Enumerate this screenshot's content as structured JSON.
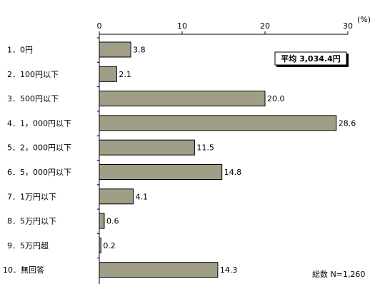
{
  "chart_data": {
    "type": "bar",
    "orientation": "horizontal",
    "unit_label": "(%)",
    "xlim": [
      0,
      30
    ],
    "ticks": [
      0,
      10,
      20,
      30
    ],
    "categories": [
      "1．0円",
      "2．100円以下",
      "3．500円以下",
      "4．1，000円以下",
      "5．2，000円以下",
      "6．5，000円以下",
      "7．1万円以下",
      "8．5万円以下",
      "9．5万円超",
      "10．無回答"
    ],
    "values": [
      3.8,
      2.1,
      20.0,
      28.6,
      11.5,
      14.8,
      4.1,
      0.6,
      0.2,
      14.3
    ],
    "value_labels": [
      "3.8",
      "2.1",
      "20.0",
      "28.6",
      "11.5",
      "14.8",
      "4.1",
      "0.6",
      "0.2",
      "14.3"
    ],
    "average_label": "平均 3,034.4円",
    "sample_label": "総数 N=1,260",
    "bar_color": "#a09e86",
    "bar_stroke": "#000000"
  }
}
